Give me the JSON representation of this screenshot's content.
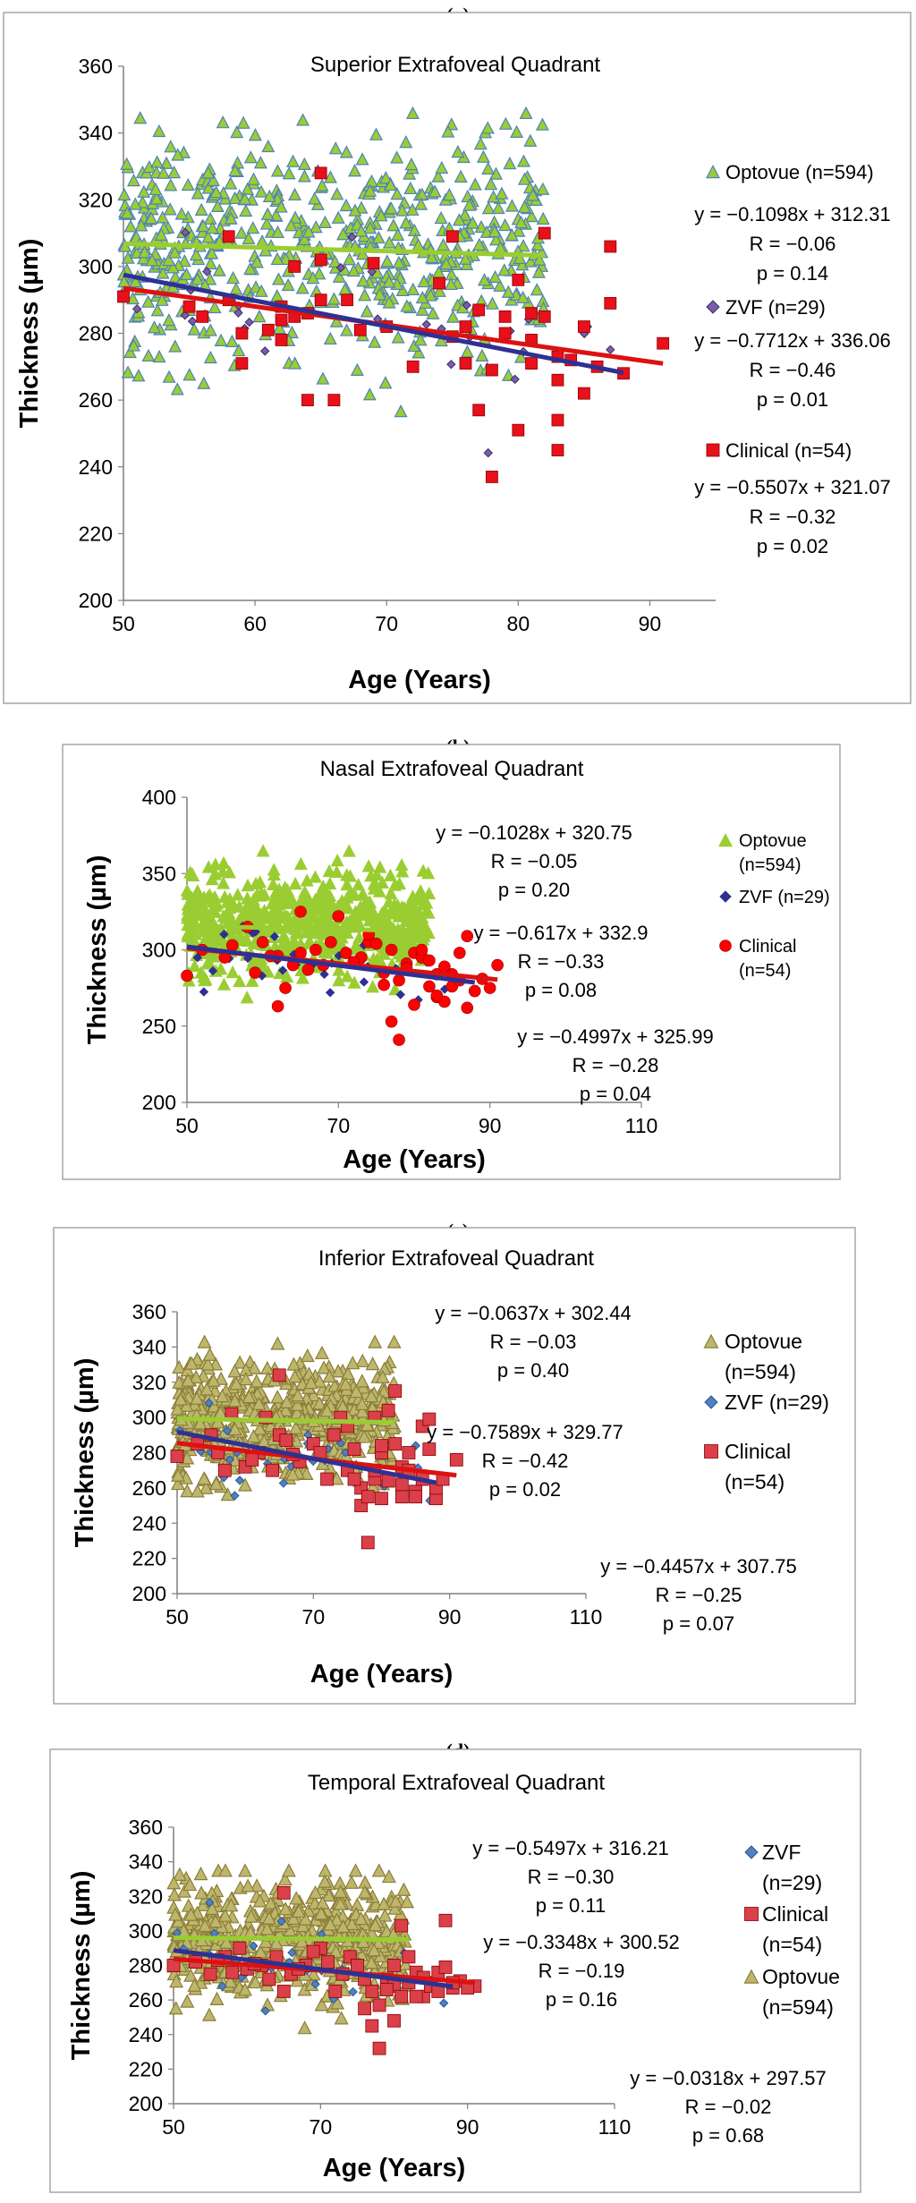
{
  "figure": {
    "panel_labels": [
      "(a)",
      "(b)",
      "(c)",
      "(d)"
    ],
    "colors": {
      "optovue_light": "#9ACD32",
      "optovue_olive": "#BDB76B",
      "optovue_edge_a": "#4F81BD",
      "optovue_edge_olive": "#8B7D3A",
      "zvf_blue": "#2E3192",
      "zvf_marker": "#4F81BD",
      "zvf_marker_a": "#7B5EA7",
      "clinical_red_a": "#E8101A",
      "clinical_red_b": "#FF0000",
      "clinical_red_cd": "#D9404A",
      "trend_green": "#9ACD32",
      "trend_blue": "#2E3192",
      "trend_red": "#DD1111",
      "frame": "#A6A6A6"
    }
  },
  "chart_data": [
    {
      "panel": "(a)",
      "type": "scatter",
      "title": "Superior Extrafoveal Quadrant",
      "xlabel": "Age (Years)",
      "ylabel": "Thickness (µm)",
      "xlim": [
        50,
        95
      ],
      "ylim": [
        200,
        360
      ],
      "xticks": [
        50,
        60,
        70,
        80,
        90
      ],
      "yticks": [
        200,
        220,
        240,
        260,
        280,
        300,
        320,
        340,
        360
      ],
      "xtick_labels": [
        "50",
        "60",
        "70",
        "80",
        "90"
      ],
      "ytick_labels": [
        "200",
        "220",
        "240",
        "260",
        "280",
        "300",
        "320",
        "340",
        "360"
      ],
      "series": [
        {
          "name": "Optovue (n=594)",
          "marker": "triangle",
          "n": 594,
          "x_range": [
            50,
            82
          ],
          "y_center": 306,
          "y_spread": 17,
          "y_min": 255,
          "y_max": 346,
          "fit": {
            "slope": -0.1098,
            "intercept": 312.31,
            "x_range": [
              50,
              82
            ]
          }
        },
        {
          "name": "ZVF (n=29)",
          "marker": "diamond",
          "n": 29,
          "x_range": [
            50,
            88
          ],
          "fit": {
            "slope": -0.7712,
            "intercept": 336.06,
            "x_range": [
              50,
              88
            ]
          }
        },
        {
          "name": "Clinical (n=54)",
          "marker": "square",
          "n": 54,
          "x": [
            50,
            55,
            56,
            58,
            59,
            59,
            62,
            62,
            63,
            64,
            64,
            65,
            65,
            66,
            68,
            69,
            72,
            75,
            75,
            76,
            77,
            77,
            78,
            78,
            79,
            80,
            80,
            81,
            81,
            82,
            82,
            83,
            83,
            83,
            83,
            85,
            85,
            87,
            87,
            88,
            91,
            63,
            62,
            67,
            70,
            74,
            76,
            79,
            81,
            84,
            86,
            58,
            61,
            65
          ],
          "y": [
            291,
            288,
            285,
            309,
            271,
            280,
            288,
            278,
            300,
            286,
            260,
            290,
            328,
            260,
            281,
            301,
            270,
            309,
            279,
            271,
            287,
            257,
            237,
            269,
            285,
            251,
            296,
            286,
            271,
            285,
            310,
            254,
            245,
            266,
            273,
            262,
            282,
            306,
            289,
            268,
            277,
            285,
            284,
            290,
            282,
            295,
            282,
            280,
            278,
            272,
            270,
            290,
            281,
            302
          ],
          "fit": {
            "slope": -0.5507,
            "intercept": 321.07,
            "x_range": [
              50,
              91
            ]
          }
        }
      ],
      "legend": [
        {
          "label": "Optovue (n=594)",
          "equation": [
            "y = −0.1098x + 312.31",
            "R = −0.06",
            "p = 0.14"
          ]
        },
        {
          "label": "ZVF (n=29)",
          "equation": [
            "y = −0.7712x + 336.06",
            "R = −0.46",
            "p = 0.01"
          ]
        },
        {
          "label": "Clinical (n=54)",
          "equation": [
            "y = −0.5507x + 321.07",
            "R = −0.32",
            "p = 0.02"
          ]
        }
      ]
    },
    {
      "panel": "(b)",
      "type": "scatter",
      "title": "Nasal Extrafoveal Quadrant",
      "xlabel": "Age (Years)",
      "ylabel": "Thickness (µm)",
      "xlim": [
        50,
        110
      ],
      "ylim": [
        200,
        400
      ],
      "xticks": [
        50,
        70,
        90,
        110
      ],
      "yticks": [
        200,
        250,
        300,
        350,
        400
      ],
      "xtick_labels": [
        "50",
        "70",
        "90",
        "110"
      ],
      "ytick_labels": [
        "200",
        "250",
        "300",
        "350",
        "400"
      ],
      "series": [
        {
          "name": "Optovue (n=594)",
          "marker": "triangle",
          "n": 594,
          "x_range": [
            50,
            82
          ],
          "y_center": 318,
          "y_spread": 17,
          "y_min": 265,
          "y_max": 365,
          "fit": {
            "slope": -0.1028,
            "intercept": 320.75,
            "x_range": [
              50,
              82
            ]
          }
        },
        {
          "name": "ZVF (n=29)",
          "marker": "diamond",
          "n": 29,
          "x_range": [
            50,
            88
          ],
          "fit": {
            "slope": -0.617,
            "intercept": 332.9,
            "x_range": [
              50,
              88
            ]
          }
        },
        {
          "name": "Clinical (n=54)",
          "marker": "circle",
          "n": 54,
          "x": [
            50,
            52,
            55,
            58,
            59,
            60,
            62,
            62,
            63,
            64,
            65,
            65,
            66,
            67,
            68,
            70,
            73,
            74,
            75,
            76,
            77,
            77,
            78,
            78,
            79,
            80,
            80,
            81,
            81,
            82,
            82,
            83,
            83,
            84,
            85,
            85,
            86,
            87,
            87,
            88,
            89,
            91,
            56,
            61,
            69,
            71,
            72,
            74,
            76,
            79,
            83,
            84,
            86,
            90
          ],
          "y": [
            283,
            300,
            295,
            315,
            285,
            305,
            263,
            296,
            275,
            290,
            298,
            325,
            287,
            300,
            290,
            322,
            295,
            305,
            304,
            277,
            253,
            300,
            241,
            280,
            291,
            264,
            298,
            295,
            300,
            276,
            293,
            269,
            284,
            266,
            276,
            284,
            298,
            309,
            262,
            273,
            281,
            290,
            303,
            296,
            305,
            298,
            292,
            310,
            285,
            288,
            270,
            289,
            280,
            275
          ],
          "fit": {
            "slope": -0.4997,
            "intercept": 325.99,
            "x_range": [
              50,
              91
            ]
          }
        }
      ],
      "legend": [
        {
          "label": "Optovue",
          "label2": "(n=594)"
        },
        {
          "label": "ZVF (n=29)"
        },
        {
          "label": "Clinical",
          "label2": "(n=54)"
        }
      ],
      "equations": [
        [
          "y = −0.1028x + 320.75",
          "R = −0.05",
          "p = 0.20"
        ],
        [
          "y = −0.617x + 332.9",
          "R = −0.33",
          "p = 0.08"
        ],
        [
          "y = −0.4997x + 325.99",
          "R = −0.28",
          "p = 0.04"
        ]
      ]
    },
    {
      "panel": "(c)",
      "type": "scatter",
      "title": "Inferior Extrafoveal Quadrant",
      "xlabel": "Age (Years)",
      "ylabel": "Thickness (µm)",
      "xlim": [
        50,
        110
      ],
      "ylim": [
        200,
        360
      ],
      "xticks": [
        50,
        70,
        90,
        110
      ],
      "yticks": [
        200,
        220,
        240,
        260,
        280,
        300,
        320,
        340,
        360
      ],
      "xtick_labels": [
        "50",
        "70",
        "90",
        "110"
      ],
      "ytick_labels": [
        "200",
        "220",
        "240",
        "260",
        "280",
        "300",
        "320",
        "340",
        "360"
      ],
      "series": [
        {
          "name": "Optovue (n=594)",
          "marker": "triangle",
          "n": 594,
          "x_range": [
            50,
            82
          ],
          "y_center": 300,
          "y_spread": 17,
          "y_min": 246,
          "y_max": 343,
          "fit": {
            "slope": -0.0637,
            "intercept": 302.44,
            "x_range": [
              50,
              82
            ]
          }
        },
        {
          "name": "ZVF (n=29)",
          "marker": "diamond",
          "n": 29,
          "x_range": [
            50,
            88
          ],
          "fit": {
            "slope": -0.7589,
            "intercept": 329.77,
            "x_range": [
              50,
              88
            ]
          }
        },
        {
          "name": "Clinical (n=54)",
          "marker": "square",
          "n": 54,
          "x": [
            50,
            53,
            55,
            57,
            58,
            60,
            62,
            63,
            64,
            65,
            65,
            66,
            68,
            70,
            72,
            74,
            75,
            75,
            76,
            77,
            77,
            78,
            78,
            79,
            79,
            80,
            80,
            81,
            81,
            82,
            82,
            83,
            83,
            84,
            85,
            86,
            86,
            87,
            87,
            88,
            91,
            56,
            61,
            67,
            71,
            73,
            76,
            79,
            80,
            83,
            84,
            85,
            88,
            89
          ],
          "y": [
            278,
            285,
            290,
            270,
            302,
            272,
            280,
            300,
            270,
            290,
            324,
            287,
            275,
            285,
            265,
            300,
            295,
            270,
            282,
            250,
            260,
            229,
            255,
            265,
            300,
            254,
            280,
            304,
            264,
            315,
            285,
            255,
            272,
            280,
            258,
            265,
            295,
            282,
            299,
            254,
            276,
            280,
            276,
            279,
            280,
            290,
            265,
            270,
            284,
            262,
            270,
            255,
            260,
            265
          ],
          "fit": {
            "slope": -0.4457,
            "intercept": 307.75,
            "x_range": [
              50,
              91
            ]
          }
        }
      ],
      "legend": [
        {
          "label": "Optovue",
          "label2": "(n=594)"
        },
        {
          "label": "ZVF (n=29)"
        },
        {
          "label": "Clinical",
          "label2": "(n=54)"
        }
      ],
      "equations": [
        [
          "y = −0.0637x + 302.44",
          "R = −0.03",
          "p = 0.40"
        ],
        [
          "y = −0.7589x + 329.77",
          "R = −0.42",
          "p = 0.02"
        ],
        [
          "y = −0.4457x + 307.75",
          "R = −0.25",
          "p = 0.07"
        ]
      ]
    },
    {
      "panel": "(d)",
      "type": "scatter",
      "title": "Temporal Extrafoveal Quadrant",
      "xlabel": "Age (Years)",
      "ylabel": "Thickness (µm)",
      "xlim": [
        50,
        110
      ],
      "ylim": [
        200,
        360
      ],
      "xticks": [
        50,
        70,
        90,
        110
      ],
      "yticks": [
        200,
        220,
        240,
        260,
        280,
        300,
        320,
        340,
        360
      ],
      "xtick_labels": [
        "50",
        "70",
        "90",
        "110"
      ],
      "ytick_labels": [
        "200",
        "220",
        "240",
        "260",
        "280",
        "300",
        "320",
        "340",
        "360"
      ],
      "series": [
        {
          "name": "Optovue (n=594)",
          "marker": "triangle",
          "n": 594,
          "x_range": [
            50,
            82
          ],
          "y_center": 296,
          "y_spread": 17,
          "y_min": 244,
          "y_max": 335,
          "fit": {
            "slope": -0.0318,
            "intercept": 297.57,
            "x_range": [
              50,
              82
            ]
          }
        },
        {
          "name": "ZVF (n=29)",
          "marker": "diamond",
          "n": 29,
          "x_range": [
            50,
            88
          ],
          "fit": {
            "slope": -0.5497,
            "intercept": 316.21,
            "x_range": [
              50,
              88
            ]
          }
        },
        {
          "name": "Clinical (n=54)",
          "marker": "square",
          "n": 54,
          "x": [
            50,
            53,
            55,
            57,
            59,
            60,
            62,
            63,
            64,
            65,
            65,
            66,
            68,
            70,
            72,
            74,
            75,
            76,
            77,
            77,
            78,
            78,
            79,
            80,
            80,
            81,
            81,
            82,
            82,
            83,
            84,
            85,
            86,
            87,
            87,
            88,
            89,
            91,
            56,
            58,
            61,
            67,
            69,
            71,
            73,
            76,
            79,
            80,
            83,
            84,
            85,
            86,
            88,
            90
          ],
          "y": [
            280,
            282,
            275,
            285,
            290,
            278,
            280,
            272,
            285,
            265,
            322,
            275,
            280,
            290,
            265,
            285,
            280,
            255,
            265,
            245,
            232,
            257,
            272,
            268,
            248,
            303,
            262,
            270,
            285,
            276,
            262,
            270,
            276,
            279,
            306,
            267,
            271,
            268,
            283,
            276,
            281,
            278,
            288,
            282,
            275,
            272,
            266,
            280,
            262,
            273,
            268,
            265,
            270,
            267
          ],
          "fit": {
            "slope": -0.3348,
            "intercept": 300.52,
            "x_range": [
              50,
              91
            ]
          }
        }
      ],
      "legend": [
        {
          "label": "ZVF",
          "label2": "(n=29)"
        },
        {
          "label": "Clinical",
          "label2": "(n=54)"
        },
        {
          "label": "Optovue",
          "label2": "(n=594)"
        }
      ],
      "equations": [
        [
          "y = −0.5497x + 316.21",
          "R = −0.30",
          "p = 0.11"
        ],
        [
          "y = −0.3348x + 300.52",
          "R = −0.19",
          "p = 0.16"
        ],
        [
          "y = −0.0318x + 297.57",
          "R = −0.02",
          "p = 0.68"
        ]
      ]
    }
  ]
}
